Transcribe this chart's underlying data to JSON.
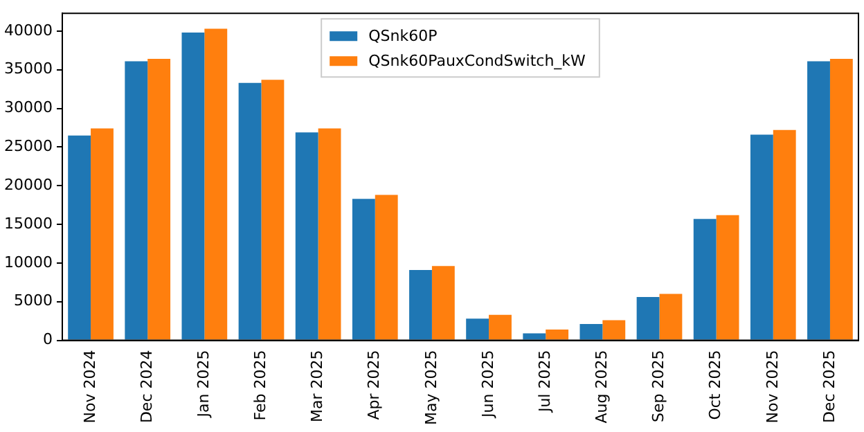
{
  "chart_data": {
    "type": "bar",
    "categories": [
      "Nov 2024",
      "Dec 2024",
      "Jan 2025",
      "Feb 2025",
      "Mar 2025",
      "Apr 2025",
      "May 2025",
      "Jun 2025",
      "Jul 2025",
      "Aug 2025",
      "Sep 2025",
      "Oct 2025",
      "Nov 2025",
      "Dec 2025"
    ],
    "series": [
      {
        "name": "QSnk60P",
        "color": "#1f77b4",
        "values": [
          26500,
          36100,
          39800,
          33300,
          26900,
          18300,
          9100,
          2800,
          900,
          2100,
          5600,
          15700,
          26600,
          36100
        ]
      },
      {
        "name": "QSnk60PauxCondSwitch_kW",
        "color": "#ff7f0e",
        "values": [
          27400,
          36400,
          40300,
          33700,
          27400,
          18800,
          9600,
          3300,
          1400,
          2600,
          6000,
          16200,
          27200,
          36400
        ]
      }
    ],
    "ylim": [
      0,
      42300
    ],
    "yticks": [
      0,
      5000,
      10000,
      15000,
      20000,
      25000,
      30000,
      35000,
      40000
    ],
    "grid": false,
    "legend": "top"
  }
}
